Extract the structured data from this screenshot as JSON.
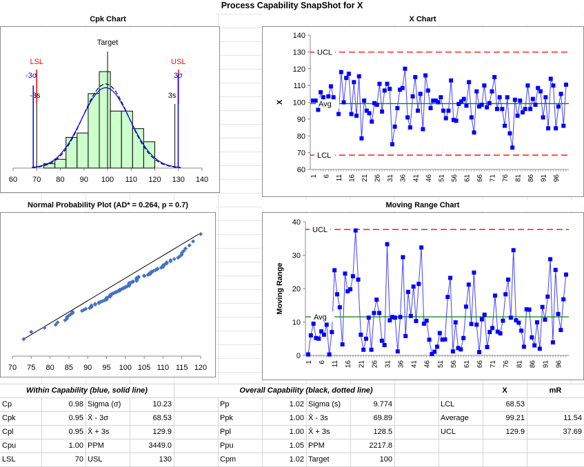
{
  "page": {
    "title": "Process Capability SnapShot for X"
  },
  "chart_data": [
    {
      "id": "cpk",
      "type": "bar",
      "title": "Cpk Chart",
      "xlim": [
        60,
        140
      ],
      "xticks": [
        "60",
        "70",
        "80",
        "90",
        "100",
        "110",
        "120",
        "130",
        "140"
      ],
      "bins": [
        {
          "from": 73,
          "to": 77.7,
          "count": 1
        },
        {
          "from": 77.7,
          "to": 82.4,
          "count": 2
        },
        {
          "from": 82.4,
          "to": 87.1,
          "count": 7
        },
        {
          "from": 87.1,
          "to": 91.8,
          "count": 8
        },
        {
          "from": 91.8,
          "to": 96.5,
          "count": 17
        },
        {
          "from": 96.5,
          "to": 101.2,
          "count": 22
        },
        {
          "from": 101.2,
          "to": 105.9,
          "count": 13
        },
        {
          "from": 105.9,
          "to": 110.6,
          "count": 13
        },
        {
          "from": 110.6,
          "to": 115.3,
          "count": 9
        },
        {
          "from": 115.3,
          "to": 120,
          "count": 6
        }
      ],
      "markers": {
        "target": {
          "label": "Target",
          "value": 100
        },
        "lsl": {
          "label": "LSL",
          "value": 70
        },
        "usl": {
          "label": "USL",
          "value": 130
        },
        "minus3sigma": {
          "label": "-3σ",
          "value": 68.53
        },
        "plus3sigma": {
          "label": "3σ",
          "value": 129.9
        },
        "minus3s": {
          "label": "-3s",
          "value": 69.89
        },
        "plus3s": {
          "label": "3s",
          "value": 128.5
        }
      },
      "mean": 99.21,
      "sigma_within": 10.23,
      "sigma_overall": 9.774,
      "colors": {
        "bar_fill": "#ccffcc",
        "within_curve": "#0000ff",
        "overall_curve": "#000000",
        "spec": "#ff0000"
      }
    },
    {
      "id": "xchart",
      "type": "line",
      "title": "X Chart",
      "ylabel": "X",
      "ylim": [
        60,
        140
      ],
      "yticks": [
        "60",
        "70",
        "80",
        "90",
        "100",
        "110",
        "120",
        "130",
        "140"
      ],
      "xticks": [
        "1",
        "6",
        "11",
        "16",
        "21",
        "26",
        "31",
        "36",
        "41",
        "46",
        "51",
        "56",
        "61",
        "66",
        "71",
        "76",
        "81",
        "86",
        "91",
        "96"
      ],
      "ucl": {
        "label": "UCL",
        "value": 129.9
      },
      "avg": {
        "label": "Avg",
        "value": 99.21
      },
      "lcl": {
        "label": "LCL",
        "value": 68.53
      },
      "values": [
        101,
        101,
        95.5,
        106,
        103,
        null,
        103.5,
        109.5,
        103,
        null,
        93,
        118,
        100,
        114.5,
        117,
        93,
        112,
        92,
        115.5,
        78.5,
        101,
        95,
        93.5,
        88.5,
        99.5,
        98.5,
        111,
        94.5,
        107,
        111,
        108,
        75,
        85.5,
        96.5,
        107.5,
        108.5,
        120,
        91,
        85,
        103.5,
        115,
        95,
        105,
        84,
        116,
        107,
        96.5,
        101,
        101,
        100,
        103,
        95,
        90.5,
        95,
        113,
        89.5,
        89,
        99,
        100.5,
        102,
        98,
        112,
        91,
        82,
        106.5,
        97.5,
        98.5,
        110,
        97,
        99.5,
        106.5,
        115,
        96,
        103,
        96,
        86,
        103,
        81.5,
        73,
        101.5,
        92,
        101,
        94,
        96,
        110,
        96,
        102,
        98.5,
        108.5,
        106.5,
        91,
        103,
        84.5,
        114,
        110,
        84.5,
        97.5,
        105,
        86,
        110.5
      ],
      "colors": {
        "line": "#0000ff",
        "ucl": "#ff0000",
        "avg": "#008000"
      }
    },
    {
      "id": "probplot",
      "type": "scatter",
      "title": "Normal Probability Plot (AD* = 0.264, p = 0.7)",
      "xlim": [
        70,
        120
      ],
      "xticks": [
        "70",
        "75",
        "80",
        "85",
        "90",
        "95",
        "100",
        "105",
        "110",
        "115",
        "120"
      ],
      "ad_statistic": 0.264,
      "p_value": 0.7,
      "fit_line": {
        "x": [
          73,
          119.5
        ],
        "z": [
          -2.45,
          2.45
        ]
      },
      "colors": {
        "points": "#4472c4",
        "line": "#000000"
      }
    },
    {
      "id": "mrchart",
      "type": "line",
      "title": "Moving Range Chart",
      "ylabel": "Moving Range",
      "ylim": [
        0,
        40
      ],
      "yticks": [
        "0",
        "10",
        "20",
        "30",
        "40"
      ],
      "xticks": [
        "1",
        "6",
        "11",
        "16",
        "21",
        "26",
        "31",
        "36",
        "41",
        "46",
        "51",
        "56",
        "61",
        "66",
        "71",
        "76",
        "81",
        "86",
        "91",
        "96"
      ],
      "ucl": {
        "label": "UCL",
        "value": 37.69
      },
      "avg": {
        "label": "Avg",
        "value": 11.54
      },
      "values": [
        0.3,
        6,
        9.5,
        5.2,
        5,
        7.2,
        6.2,
        9.2,
        0.3,
        7,
        25.5,
        18.3,
        14.4,
        3.3,
        24.5,
        19.2,
        19.8,
        23.7,
        37.4,
        22.7,
        6.2,
        1.7,
        5,
        11.3,
        1.7,
        12.7,
        16.7,
        12.7,
        4.4,
        3.1,
        33.3,
        10.5,
        11.5,
        11.3,
        1.2,
        11.5,
        29.4,
        5.8,
        19,
        11.8,
        20.6,
        10.3,
        21.4,
        32.3,
        9.5,
        10.4,
        4.7,
        0.4,
        1.1,
        2.6,
        6.7,
        4.7,
        4.8,
        17.5,
        23.2,
        1.2,
        9.9,
        2.2,
        1.8,
        5.2,
        14.6,
        21.2,
        9.4,
        24.8,
        9.2,
        1,
        10.8,
        12.2,
        2.5,
        7,
        8.2,
        17.9,
        7.1,
        6.6,
        10.4,
        18.3,
        22.7,
        11.3,
        31.5,
        10.5,
        9.8,
        7.4,
        2.6,
        13.8,
        13.7,
        5.4,
        3,
        9.9,
        2,
        14.5,
        10.7,
        17.6,
        28.8,
        3.9,
        25.6,
        12.4,
        7.6,
        16.8,
        24.2
      ],
      "colors": {
        "line": "#0000ff",
        "ucl": "#ff0000",
        "avg": "#008000"
      }
    }
  ],
  "within": {
    "header": "Within Capability (blue, solid line)",
    "rows": [
      {
        "label": "Cp",
        "value": "0.98",
        "label2": "Sigma (σ)",
        "value2": "10.23"
      },
      {
        "label": "Cpk",
        "value": "0.95",
        "label2": "X̄ - 3σ",
        "value2": "68.53"
      },
      {
        "label": "Cpl",
        "value": "0.95",
        "label2": "X̄ + 3s",
        "value2": "129.9"
      },
      {
        "label": "Cpu",
        "value": "1.00",
        "label2": "PPM",
        "value2": "3449.0"
      },
      {
        "label": "LSL",
        "value": "70",
        "label2": "USL",
        "value2": "130"
      }
    ]
  },
  "overall": {
    "header": "Overall Capability (black, dotted line)",
    "rows": [
      {
        "label": "Pp",
        "value": "1.02",
        "label2": "Sigma (s)",
        "value2": "9.774"
      },
      {
        "label": "Ppk",
        "value": "1.00",
        "label2": "X̄ - 3s",
        "value2": "69.89"
      },
      {
        "label": "Ppl",
        "value": "1.00",
        "label2": "X̄ + 3s",
        "value2": "128.5"
      },
      {
        "label": "Ppu",
        "value": "1.05",
        "label2": "PPM",
        "value2": "2217.8"
      },
      {
        "label": "Cpm",
        "value": "1.02",
        "label2": "Target",
        "value2": "100"
      }
    ]
  },
  "limits": {
    "col_x": "X",
    "col_mr": "mR",
    "rows": [
      {
        "label": "LCL",
        "x": "68.53",
        "mr": ""
      },
      {
        "label": "Average",
        "x": "99.21",
        "mr": "11.54"
      },
      {
        "label": "UCL",
        "x": "129.9",
        "mr": "37.69"
      }
    ]
  }
}
